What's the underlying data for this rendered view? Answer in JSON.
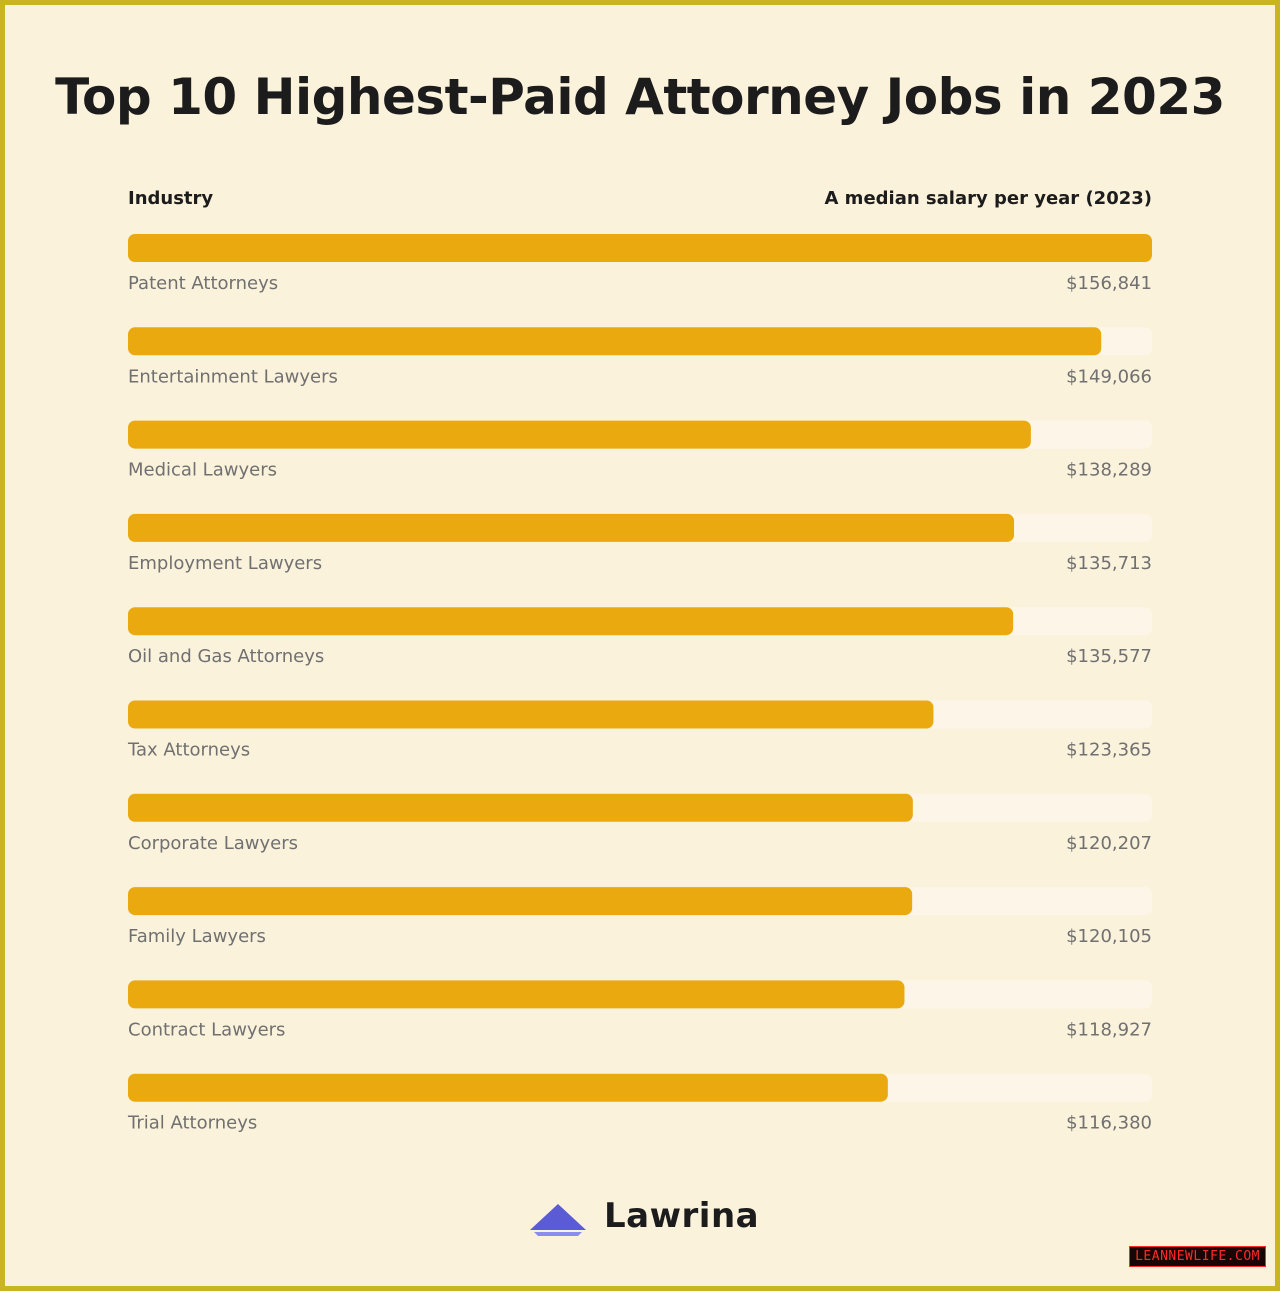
{
  "header": {
    "title": "Top 10 Highest-Paid Attorney Jobs in 2023",
    "col_left": "Industry",
    "col_right": "A median salary per year (2023)"
  },
  "chart_data": {
    "type": "bar",
    "orientation": "horizontal",
    "title": "Top 10 Highest-Paid Attorney Jobs in 2023",
    "xlabel": "",
    "ylabel": "",
    "xlim": [
      0,
      156841
    ],
    "categories": [
      "Patent Attorneys",
      "Entertainment Lawyers",
      "Medical Lawyers",
      "Employment Lawyers",
      "Oil and Gas Attorneys",
      "Tax Attorneys",
      "Corporate Lawyers",
      "Family Lawyers",
      "Contract Lawyers",
      "Trial Attorneys"
    ],
    "values": [
      156841,
      149066,
      138289,
      135713,
      135577,
      123365,
      120207,
      120105,
      118927,
      116380
    ],
    "value_labels": [
      "$156,841",
      "$149,066",
      "$138,289",
      "$135,713",
      "$135,577",
      "$123,365",
      "$120,207",
      "$120,105",
      "$118,927",
      "$116,380"
    ],
    "grid": false,
    "legend": "none",
    "colors": {
      "bar": "#e9a90f",
      "track": "#fdf6e8"
    }
  },
  "logo": {
    "text": "Lawrina",
    "icon": "lawrina-logo-icon",
    "color": "#5b5bd6"
  },
  "watermark": {
    "text": "LEANNEWLIFE.COM"
  }
}
